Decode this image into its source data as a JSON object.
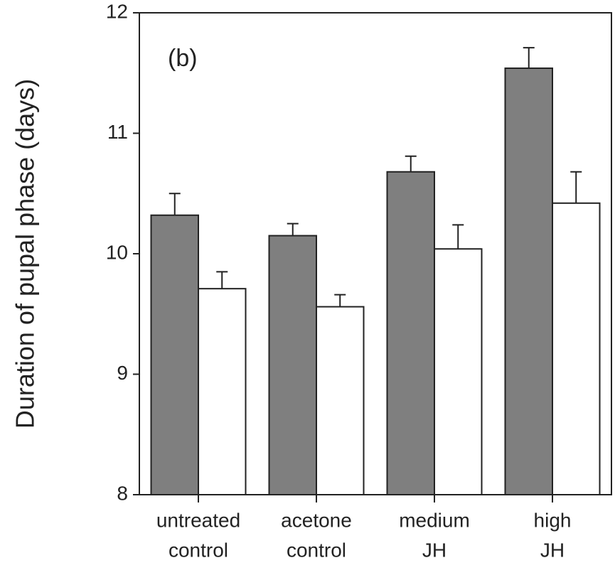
{
  "chart_data": {
    "type": "bar",
    "y_label": "Duration of pupal phase (days)",
    "annotation": "(b)",
    "categories": [
      [
        "untreated",
        "control"
      ],
      [
        "acetone",
        "control"
      ],
      [
        "medium",
        "JH"
      ],
      [
        "high",
        "JH"
      ]
    ],
    "series": [
      {
        "color": "#7f7f7f",
        "values": [
          10.32,
          10.15,
          10.68,
          11.54
        ],
        "errors": [
          0.18,
          0.1,
          0.13,
          0.17
        ]
      },
      {
        "color": "#ffffff",
        "values": [
          9.71,
          9.56,
          10.04,
          10.42
        ],
        "errors": [
          0.14,
          0.1,
          0.2,
          0.26
        ]
      }
    ],
    "ylim": [
      8,
      12
    ],
    "yticks": [
      8,
      9,
      10,
      11,
      12
    ]
  }
}
